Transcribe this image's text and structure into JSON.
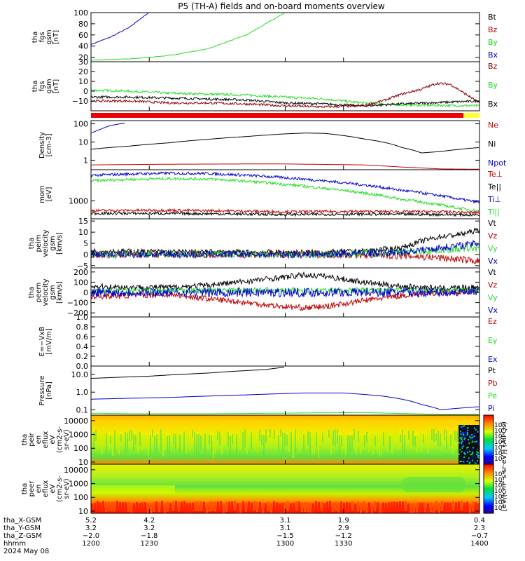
{
  "title": "P5 (TH-A) fields and on-board moments overview",
  "colors": {
    "black": "#000000",
    "red": "#c00000",
    "green": "#22dd22",
    "blue": "#0000cc",
    "darkred": "#8b0000",
    "bright_red": "#ee0000"
  },
  "chart_data": [
    {
      "type": "line",
      "ylabel": [
        "tha",
        "fgs",
        "gsm",
        "[nT]"
      ],
      "yticks": [
        "100",
        "80",
        "60",
        "40",
        "20"
      ],
      "ylim": [
        12,
        100
      ],
      "legend": [
        {
          "name": "Bt",
          "color": "#000000"
        },
        {
          "name": "Bz",
          "color": "#c00000"
        },
        {
          "name": "By",
          "color": "#22dd22"
        },
        {
          "name": "Bx",
          "color": "#0000cc"
        }
      ],
      "series": [
        {
          "name": "Bx",
          "color": "#0000cc",
          "x": [
            1200,
            1210,
            1220,
            1225,
            1230
          ],
          "y": [
            43,
            56,
            74,
            88,
            100
          ]
        },
        {
          "name": "By",
          "color": "#22dd22",
          "x": [
            1200,
            1220,
            1240,
            1260,
            1280,
            1290,
            1300
          ],
          "y": [
            15,
            17,
            23,
            35,
            60,
            80,
            100
          ]
        }
      ]
    },
    {
      "type": "line",
      "ylabel": [
        "tha",
        "fgs",
        "gsm",
        "[nT]"
      ],
      "yticks": [
        "30",
        "20",
        "10",
        "0",
        "−10"
      ],
      "ylim": [
        -20,
        30
      ],
      "legend": [
        {
          "name": "Bz",
          "color": "#8b0000"
        },
        {
          "name": "By",
          "color": "#22dd22"
        },
        {
          "name": "Bx",
          "color": "#000000"
        }
      ],
      "series": [
        {
          "name": "By",
          "color": "#22dd22",
          "x": [
            1200,
            1220,
            1240,
            1260,
            1280,
            1300,
            1320,
            1340,
            1350,
            1360,
            1400
          ],
          "y": [
            1,
            0,
            -2,
            -3,
            -4,
            -6,
            -8,
            -12,
            -13,
            -14,
            -15
          ]
        },
        {
          "name": "Bx",
          "color": "#000000",
          "x": [
            1200,
            1220,
            1240,
            1260,
            1280,
            1300,
            1320,
            1340,
            1350,
            1360,
            1400
          ],
          "y": [
            -6,
            -6,
            -7,
            -8,
            -9,
            -12,
            -13,
            -15,
            -14,
            -13,
            -10
          ]
        },
        {
          "name": "Bz",
          "color": "#8b0000",
          "x": [
            1200,
            1220,
            1240,
            1260,
            1280,
            1300,
            1320,
            1340,
            1350,
            1360,
            1370,
            1378,
            1385,
            1400
          ],
          "y": [
            -10,
            -10,
            -12,
            -12,
            -13,
            -15,
            -16,
            -15,
            -10,
            -3,
            2,
            8,
            7,
            -12
          ]
        }
      ]
    },
    {
      "type": "line",
      "ylabel": [
        "Density",
        "[cm-3]"
      ],
      "yscale": "log",
      "yticks": [
        "100",
        "10",
        "1"
      ],
      "ytick_values": [
        100,
        10,
        1
      ],
      "ylim": [
        0.3,
        150
      ],
      "legend": [
        {
          "name": "Ne",
          "color": "#c00000"
        },
        {
          "name": "Ni",
          "color": "#000000"
        },
        {
          "name": "Npot",
          "color": "#0000cc"
        }
      ],
      "series": [
        {
          "name": "Npot",
          "color": "#0000cc",
          "x": [
            1200,
            1205,
            1210,
            1215,
            1218
          ],
          "y": [
            30,
            50,
            80,
            100,
            110
          ]
        },
        {
          "name": "Ni",
          "color": "#000000",
          "x": [
            1200,
            1220,
            1240,
            1260,
            1280,
            1300,
            1310,
            1320,
            1340,
            1360,
            1370,
            1380,
            1400
          ],
          "y": [
            4,
            6,
            9,
            14,
            20,
            28,
            31,
            30,
            15,
            5,
            2.5,
            3,
            5
          ]
        },
        {
          "name": "Ne",
          "color": "#c00000",
          "x": [
            1200,
            1240,
            1280,
            1300,
            1340,
            1360,
            1380,
            1400
          ],
          "y": [
            0.55,
            0.6,
            0.62,
            0.62,
            0.55,
            0.42,
            0.33,
            0.32
          ]
        }
      ]
    },
    {
      "type": "line",
      "ylabel": [
        "mom",
        "[eV]"
      ],
      "yscale": "log",
      "yticks": [
        "1000"
      ],
      "ytick_values": [
        1000
      ],
      "ylim": [
        300,
        8000
      ],
      "legend": [
        {
          "name": "Te⊥",
          "color": "#c00000"
        },
        {
          "name": "Te||",
          "color": "#000000"
        },
        {
          "name": "Ti⊥",
          "color": "#0000cc"
        },
        {
          "name": "Ti||",
          "color": "#22dd22"
        }
      ],
      "series": [
        {
          "name": "Ti⊥",
          "color": "#0000cc",
          "x": [
            1200,
            1220,
            1240,
            1260,
            1280,
            1300,
            1320,
            1340,
            1360,
            1380,
            1390,
            1400
          ],
          "y": [
            5500,
            6000,
            6300,
            6200,
            5500,
            4700,
            3800,
            2900,
            2000,
            1400,
            1100,
            900
          ]
        },
        {
          "name": "Ti||",
          "color": "#22dd22",
          "x": [
            1200,
            1220,
            1240,
            1260,
            1280,
            1300,
            1320,
            1340,
            1360,
            1380,
            1390,
            1400
          ],
          "y": [
            3800,
            4200,
            4400,
            4300,
            3700,
            3000,
            2300,
            1700,
            1100,
            750,
            600,
            500
          ]
        },
        {
          "name": "Te⊥",
          "color": "#c00000",
          "x": [
            1200,
            1240,
            1280,
            1300,
            1340,
            1380,
            1400
          ],
          "y": [
            520,
            530,
            500,
            480,
            490,
            480,
            450
          ]
        },
        {
          "name": "Te||",
          "color": "#000000",
          "x": [
            1200,
            1240,
            1280,
            1300,
            1340,
            1380,
            1400
          ],
          "y": [
            430,
            430,
            410,
            400,
            410,
            400,
            390
          ]
        }
      ]
    },
    {
      "type": "line",
      "ylabel": [
        "tha",
        "peim",
        "velocity",
        "gsm",
        "[km/s]"
      ],
      "yticks": [
        "15",
        "10",
        "5",
        "0",
        "−5"
      ],
      "ylim": [
        -6,
        16
      ],
      "legend": [
        {
          "name": "Vt",
          "color": "#000000"
        },
        {
          "name": "Vz",
          "color": "#c00000"
        },
        {
          "name": "Vy",
          "color": "#22dd22"
        },
        {
          "name": "Vx",
          "color": "#0000cc"
        }
      ],
      "series": [
        {
          "name": "Vt",
          "color": "#000000",
          "x": [
            1200,
            1240,
            1280,
            1320,
            1340,
            1360,
            1370,
            1380,
            1390,
            1400
          ],
          "y": [
            1.5,
            1.2,
            1,
            1,
            1.5,
            3,
            6,
            8,
            9,
            11
          ]
        },
        {
          "name": "Vz",
          "color": "#c00000",
          "x": [
            1200,
            1240,
            1280,
            1320,
            1360,
            1380,
            1400
          ],
          "y": [
            0,
            0,
            0,
            0,
            -0.5,
            -1.5,
            -3
          ]
        },
        {
          "name": "Vy",
          "color": "#22dd22",
          "x": [
            1200,
            1240,
            1280,
            1320,
            1360,
            1380,
            1400
          ],
          "y": [
            0,
            0,
            0,
            0,
            1,
            2,
            3
          ]
        },
        {
          "name": "Vx",
          "color": "#0000cc",
          "x": [
            1200,
            1240,
            1280,
            1320,
            1360,
            1380,
            1400
          ],
          "y": [
            0,
            0,
            0,
            0,
            1,
            3,
            5
          ]
        }
      ]
    },
    {
      "type": "line",
      "ylabel": [
        "tha",
        "peem",
        "velocity",
        "gsm",
        "[km/s]"
      ],
      "yticks": [
        "200",
        "100",
        "0",
        "−100",
        "−200"
      ],
      "ylim": [
        -240,
        240
      ],
      "legend": [
        {
          "name": "Vt",
          "color": "#000000"
        },
        {
          "name": "Vz",
          "color": "#c00000"
        },
        {
          "name": "Vy",
          "color": "#22dd22"
        },
        {
          "name": "Vx",
          "color": "#0000cc"
        }
      ],
      "series": [
        {
          "name": "Vt",
          "color": "#000000",
          "x": [
            1200,
            1220,
            1240,
            1260,
            1280,
            1300,
            1310,
            1320,
            1340,
            1360,
            1380,
            1400
          ],
          "y": [
            60,
            50,
            50,
            70,
            110,
            150,
            170,
            160,
            100,
            60,
            40,
            50
          ]
        },
        {
          "name": "Vz",
          "color": "#c00000",
          "x": [
            1200,
            1220,
            1240,
            1260,
            1280,
            1300,
            1310,
            1320,
            1340,
            1360,
            1380,
            1400
          ],
          "y": [
            -40,
            -30,
            -20,
            -60,
            -100,
            -140,
            -150,
            -140,
            -80,
            -30,
            0,
            10
          ]
        },
        {
          "name": "Vy",
          "color": "#22dd22",
          "x": [
            1200,
            1240,
            1280,
            1320,
            1360,
            1400
          ],
          "y": [
            10,
            15,
            20,
            20,
            20,
            20
          ]
        },
        {
          "name": "Vx",
          "color": "#0000cc",
          "x": [
            1200,
            1240,
            1280,
            1320,
            1360,
            1400
          ],
          "y": [
            0,
            0,
            0,
            0,
            0,
            0
          ]
        }
      ]
    },
    {
      "type": "line",
      "ylabel": [
        "E=−VxB",
        "[mV/m]"
      ],
      "yticks": [
        "1.0",
        "0.8",
        "0.6",
        "0.4",
        "0.2",
        "0.0"
      ],
      "ylim": [
        0,
        1
      ],
      "legend": [
        {
          "name": "Ez",
          "color": "#c00000"
        },
        {
          "name": "Ey",
          "color": "#22dd22"
        },
        {
          "name": "Ex",
          "color": "#0000cc"
        }
      ],
      "series": []
    },
    {
      "type": "line",
      "ylabel": [
        "Pressure",
        "[nPa]"
      ],
      "yscale": "log",
      "yticks": [
        "10.0",
        "1.0",
        "0.1"
      ],
      "ytick_values": [
        10,
        1,
        0.1
      ],
      "ylim": [
        0.05,
        30
      ],
      "legend": [
        {
          "name": "Pt",
          "color": "#000000"
        },
        {
          "name": "Pb",
          "color": "#c00000"
        },
        {
          "name": "Pe",
          "color": "#22dd22"
        },
        {
          "name": "Pi",
          "color": "#0000cc"
        }
      ],
      "series": [
        {
          "name": "Pt",
          "color": "#000000",
          "x": [
            1200,
            1230,
            1260,
            1290,
            1300
          ],
          "y": [
            6,
            8,
            12,
            19,
            26
          ]
        },
        {
          "name": "Pi",
          "color": "#0000cc",
          "x": [
            1200,
            1240,
            1280,
            1310,
            1330,
            1350,
            1370,
            1380,
            1400
          ],
          "y": [
            0.4,
            0.5,
            0.7,
            0.9,
            0.9,
            0.6,
            0.2,
            0.1,
            0.15
          ]
        },
        {
          "name": "Pe",
          "color": "#22dd22",
          "x": [
            1200,
            1220,
            1260,
            1300,
            1340,
            1360,
            1380,
            1400
          ],
          "y": [
            0.065,
            0.06,
            0.06,
            0.065,
            0.07,
            0.062,
            0.055,
            0.055
          ]
        }
      ]
    },
    {
      "type": "heatmap",
      "ylabel": [
        "tha",
        "peir",
        "en",
        "eflux",
        "eV",
        "(cm2-s-",
        "sr-eV)"
      ],
      "yscale": "log",
      "yticks": [
        "10000",
        "1000",
        "100",
        "10"
      ],
      "ytick_values": [
        10000,
        1000,
        100,
        10
      ],
      "ylim": [
        7,
        25000
      ],
      "colorbar_ticks": [
        "10⁸",
        "10⁷",
        "10⁶",
        "10⁵",
        "10⁴",
        "10³",
        "10²"
      ]
    },
    {
      "type": "heatmap",
      "ylabel": [
        "tha",
        "peer",
        "en",
        "eflux",
        "eV",
        "(cm2-s-",
        "sr-eV)"
      ],
      "yscale": "log",
      "yticks": [
        "10000",
        "1000",
        "100",
        "10"
      ],
      "ytick_values": [
        10000,
        1000,
        100,
        10
      ],
      "ylim": [
        7,
        25000
      ],
      "colorbar_ticks": [
        "10⁸",
        "10⁷",
        "10⁶",
        "10⁵",
        "10⁴",
        "10³",
        "10²"
      ]
    }
  ],
  "colorbar_label": "[eV/(cm²·s·sr·eV)] (All Qs)",
  "xaxis": {
    "xlim": [
      1200,
      1400
    ],
    "rows": [
      {
        "label": "tha_X-GSM",
        "values": [
          "5.2",
          "4.2",
          "3.1",
          "1.9",
          "0.4"
        ]
      },
      {
        "label": "tha_Y-GSM",
        "values": [
          "3.2",
          "3.2",
          "3.1",
          "2.9",
          "2.3"
        ]
      },
      {
        "label": "tha_Z-GSM",
        "values": [
          "−2.0",
          "−1.8",
          "−1.5",
          "−1.2",
          "−0.7"
        ]
      },
      {
        "label": "hhmm",
        "values": [
          "1200",
          "1230",
          "1300",
          "1330",
          "1400"
        ]
      },
      {
        "label": "2024 May 08",
        "values": []
      }
    ],
    "tick_times": [
      1200,
      1230,
      1300,
      1330,
      1400
    ]
  }
}
